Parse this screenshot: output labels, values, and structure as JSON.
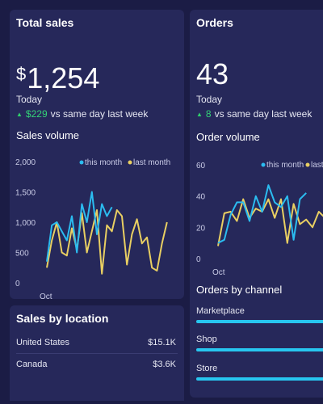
{
  "colors": {
    "background": "#1b1c45",
    "card": "#26285a",
    "this_month": "#2bbcf0",
    "last_month": "#e9cf62",
    "positive": "#34d277",
    "bar": "#27c6f0"
  },
  "sales_card": {
    "title": "Total sales",
    "currency": "$",
    "value": "1,254",
    "period": "Today",
    "delta": "$229",
    "comparison": "vs same day last week"
  },
  "orders_card": {
    "title": "Orders",
    "value": "43",
    "period": "Today",
    "delta": "8",
    "comparison": "vs same day last week"
  },
  "sales_volume_title": "Sales volume",
  "order_volume_title": "Order volume",
  "chart_data": [
    {
      "type": "line",
      "title": "Sales volume",
      "xlabel": "",
      "ylabel": "",
      "ylim": [
        0,
        2000
      ],
      "yticks": [
        "2,000",
        "1,500",
        "1,000",
        "500",
        "0"
      ],
      "xtick": "Oct",
      "legend_position": "top-right",
      "series": [
        {
          "name": "this month",
          "color": "#2bbcf0",
          "values": [
            350,
            950,
            1000,
            850,
            700,
            1100,
            500,
            1300,
            1000,
            1500,
            800,
            1300,
            1100,
            1250
          ]
        },
        {
          "name": "last month",
          "color": "#e9cf62",
          "values": [
            250,
            700,
            1000,
            500,
            450,
            900,
            550,
            1150,
            500,
            850,
            1200,
            150,
            950,
            850,
            1200,
            1100,
            300,
            800,
            1050,
            650,
            750,
            250,
            200,
            650,
            1000
          ]
        }
      ]
    },
    {
      "type": "line",
      "title": "Order volume",
      "xlabel": "",
      "ylabel": "",
      "ylim": [
        0,
        60
      ],
      "yticks": [
        "60",
        "40",
        "20",
        "0"
      ],
      "xtick": "Oct",
      "legend_position": "top-right",
      "series": [
        {
          "name": "this month",
          "color": "#2bbcf0",
          "values": [
            10,
            12,
            28,
            36,
            36,
            24,
            40,
            30,
            47,
            36,
            33,
            40,
            12,
            38,
            42
          ]
        },
        {
          "name": "last month",
          "color": "#e9cf62",
          "values": [
            8,
            29,
            30,
            24,
            38,
            26,
            32,
            30,
            38,
            26,
            38,
            10,
            35,
            22,
            25,
            20,
            30,
            26
          ]
        }
      ]
    }
  ],
  "location_card": {
    "title": "Sales by location",
    "rows": [
      {
        "country": "United States",
        "value": "$15.1K"
      },
      {
        "country": "Canada",
        "value": "$3.6K"
      }
    ]
  },
  "channel_card": {
    "title": "Orders by channel",
    "channels": [
      {
        "label": "Marketplace",
        "share": 1.0
      },
      {
        "label": "Shop",
        "share": 1.0
      },
      {
        "label": "Store",
        "share": 1.0
      }
    ]
  }
}
